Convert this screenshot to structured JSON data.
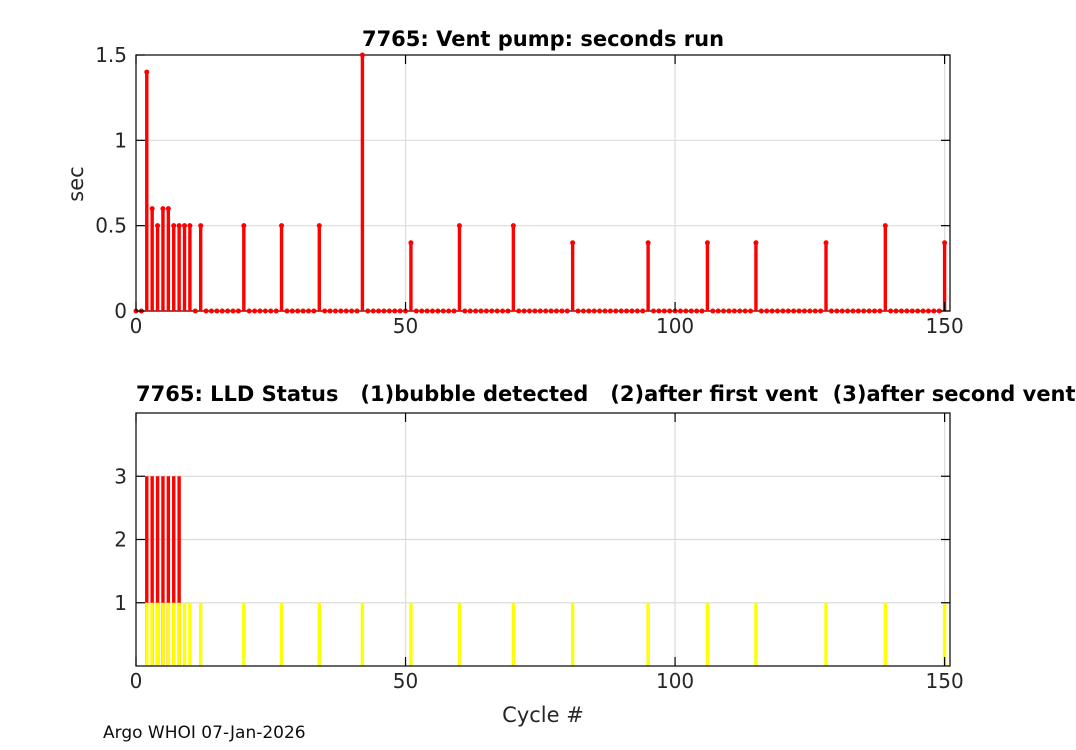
{
  "figure": {
    "footer": "Argo WHOI 07-Jan-2026"
  },
  "colors": {
    "stem_red": "#ff0000",
    "status_red": "#ff0000",
    "status_yellow": "#ffff00",
    "grid": "#dcdcdc",
    "axis_box": "#000000",
    "tick_text": "#262626",
    "label_text": "#262626",
    "title_text": "#000000"
  },
  "chart_data": [
    {
      "type": "stem",
      "title": "7765: Vent pump: seconds run",
      "ylabel": "sec",
      "xlabel": "",
      "xlim": [
        0,
        151
      ],
      "ylim": [
        0,
        1.5
      ],
      "xticks": [
        0,
        50,
        100,
        150
      ],
      "xtick_labels": [
        "0",
        "50",
        "100",
        "150"
      ],
      "yticks": [
        0,
        0.5,
        1,
        1.5
      ],
      "ytick_labels": [
        "0",
        "0.5",
        "1",
        "1.5"
      ],
      "grid": true,
      "series": [
        {
          "name": "vent pump seconds run",
          "color": "#ff0000",
          "x_start": 0,
          "x_end": 150,
          "zero_fill": 0,
          "nonzero_points": [
            [
              2,
              1.4
            ],
            [
              3,
              0.6
            ],
            [
              4,
              0.5
            ],
            [
              5,
              0.6
            ],
            [
              6,
              0.6
            ],
            [
              7,
              0.5
            ],
            [
              8,
              0.5
            ],
            [
              9,
              0.5
            ],
            [
              10,
              0.5
            ],
            [
              12,
              0.5
            ],
            [
              20,
              0.5
            ],
            [
              27,
              0.5
            ],
            [
              34,
              0.5
            ],
            [
              42,
              1.5
            ],
            [
              51,
              0.4
            ],
            [
              60,
              0.5
            ],
            [
              70,
              0.5
            ],
            [
              81,
              0.4
            ],
            [
              95,
              0.4
            ],
            [
              106,
              0.4
            ],
            [
              115,
              0.4
            ],
            [
              128,
              0.4
            ],
            [
              139,
              0.5
            ],
            [
              150,
              0.4
            ]
          ]
        }
      ]
    },
    {
      "type": "bar",
      "title": "7765: LLD Status   (1)bubble detected   (2)after first vent  (3)after second vent",
      "ylabel": "",
      "xlabel": "Cycle #",
      "xlim": [
        0,
        151
      ],
      "ylim": [
        0,
        4
      ],
      "xticks": [
        0,
        50,
        100,
        150
      ],
      "xtick_labels": [
        "0",
        "50",
        "100",
        "150"
      ],
      "yticks": [
        1,
        2,
        3
      ],
      "ytick_labels": [
        "1",
        "2",
        "3"
      ],
      "grid": true,
      "series": [
        {
          "name": "status 3 after second vent",
          "color": "#ff0000",
          "value": 3,
          "cycles": [
            2,
            3,
            4,
            5,
            6,
            7,
            8
          ]
        },
        {
          "name": "status 1 bubble detected",
          "color": "#ffff00",
          "value": 1,
          "cycles": [
            2,
            3,
            4,
            5,
            6,
            7,
            8,
            9,
            10,
            12,
            20,
            27,
            34,
            42,
            51,
            60,
            70,
            81,
            95,
            106,
            115,
            128,
            139,
            150
          ]
        }
      ]
    }
  ]
}
